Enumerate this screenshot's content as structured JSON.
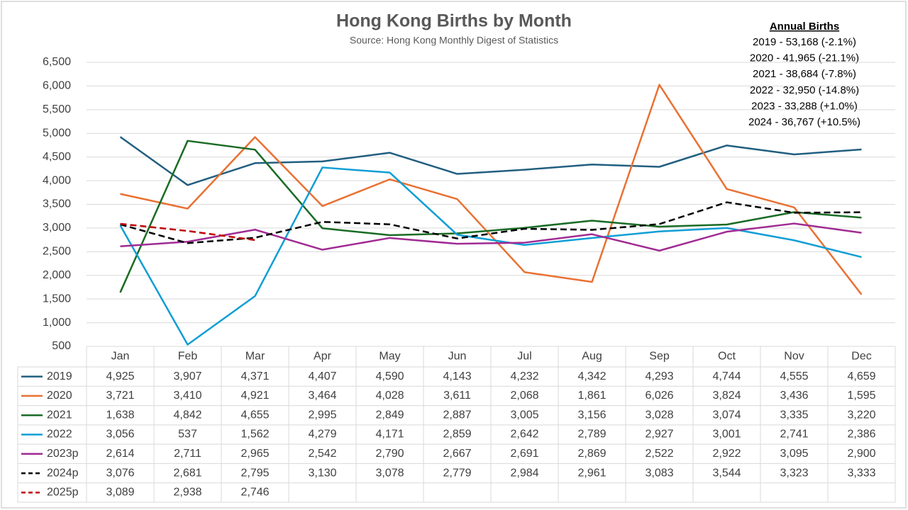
{
  "chart_data": {
    "type": "line",
    "title": "Hong Kong Births by Month",
    "subtitle": "Source: Hong Kong Monthly Digest of Statistics",
    "annotation_title": "Annual Births",
    "annotations": [
      "2019 - 53,168 (-2.1%)",
      "2020 - 41,965 (-21.1%)",
      "2021 - 38,684 (-7.8%)",
      "2022 - 32,950 (-14.8%)",
      "2023 - 33,288 (+1.0%)",
      "2024 - 36,767 (+10.5%)"
    ],
    "categories": [
      "Jan",
      "Feb",
      "Mar",
      "Apr",
      "May",
      "Jun",
      "Jul",
      "Aug",
      "Sep",
      "Oct",
      "Nov",
      "Dec"
    ],
    "ylim": [
      500,
      6500
    ],
    "yticks": [
      500,
      {
        "value": 1000,
        "label": "1,000"
      },
      {
        "value": 1500,
        "label": "1,500"
      },
      {
        "value": 2000,
        "label": "2,000"
      },
      {
        "value": 2500,
        "label": "2,500"
      },
      {
        "value": 3000,
        "label": "3,000"
      },
      {
        "value": 3500,
        "label": "3,500"
      },
      {
        "value": 4000,
        "label": "4,000"
      },
      {
        "value": 4500,
        "label": "4,500"
      },
      {
        "value": 5000,
        "label": "5,000"
      },
      {
        "value": 5500,
        "label": "5,500"
      },
      {
        "value": 6000,
        "label": "6,000"
      },
      {
        "value": 6500,
        "label": "6,500"
      }
    ],
    "grid": true,
    "series": [
      {
        "name": "2019",
        "color": "#215f80",
        "dashed": false,
        "values": [
          4925,
          3907,
          4371,
          4407,
          4590,
          4143,
          4232,
          4342,
          4293,
          4744,
          4555,
          4659
        ],
        "value_labels": [
          "4,925",
          "3,907",
          "4,371",
          "4,407",
          "4,590",
          "4,143",
          "4,232",
          "4,342",
          "4,293",
          "4,744",
          "4,555",
          "4,659"
        ]
      },
      {
        "name": "2020",
        "color": "#e97132",
        "dashed": false,
        "values": [
          3721,
          3410,
          4921,
          3464,
          4028,
          3611,
          2068,
          1861,
          6026,
          3824,
          3436,
          1595
        ],
        "value_labels": [
          "3,721",
          "3,410",
          "4,921",
          "3,464",
          "4,028",
          "3,611",
          "2,068",
          "1,861",
          "6,026",
          "3,824",
          "3,436",
          "1,595"
        ]
      },
      {
        "name": "2021",
        "color": "#196b24",
        "dashed": false,
        "values": [
          1638,
          4842,
          4655,
          2995,
          2849,
          2887,
          3005,
          3156,
          3028,
          3074,
          3335,
          3220
        ],
        "value_labels": [
          "1,638",
          "4,842",
          "4,655",
          "2,995",
          "2,849",
          "2,887",
          "3,005",
          "3,156",
          "3,028",
          "3,074",
          "3,335",
          "3,220"
        ]
      },
      {
        "name": "2022",
        "color": "#0f9ed5",
        "dashed": false,
        "values": [
          3056,
          537,
          1562,
          4279,
          4171,
          2859,
          2642,
          2789,
          2927,
          3001,
          2741,
          2386
        ],
        "value_labels": [
          "3,056",
          "537",
          "1,562",
          "4,279",
          "4,171",
          "2,859",
          "2,642",
          "2,789",
          "2,927",
          "3,001",
          "2,741",
          "2,386"
        ]
      },
      {
        "name": "2023p",
        "color": "#a02b93",
        "dashed": false,
        "values": [
          2614,
          2711,
          2965,
          2542,
          2790,
          2667,
          2691,
          2869,
          2522,
          2922,
          3095,
          2900
        ],
        "value_labels": [
          "2,614",
          "2,711",
          "2,965",
          "2,542",
          "2,790",
          "2,667",
          "2,691",
          "2,869",
          "2,522",
          "2,922",
          "3,095",
          "2,900"
        ]
      },
      {
        "name": "2024p",
        "color": "#000000",
        "dashed": true,
        "values": [
          3076,
          2681,
          2795,
          3130,
          3078,
          2779,
          2984,
          2961,
          3083,
          3544,
          3323,
          3333
        ],
        "value_labels": [
          "3,076",
          "2,681",
          "2,795",
          "3,130",
          "3,078",
          "2,779",
          "2,984",
          "2,961",
          "3,083",
          "3,544",
          "3,323",
          "3,333"
        ]
      },
      {
        "name": "2025p",
        "color": "#c00000",
        "dashed": true,
        "values": [
          3089,
          2938,
          2746,
          null,
          null,
          null,
          null,
          null,
          null,
          null,
          null,
          null
        ],
        "value_labels": [
          "3,089",
          "2,938",
          "2,746",
          null,
          null,
          null,
          null,
          null,
          null,
          null,
          null,
          null
        ]
      }
    ]
  }
}
